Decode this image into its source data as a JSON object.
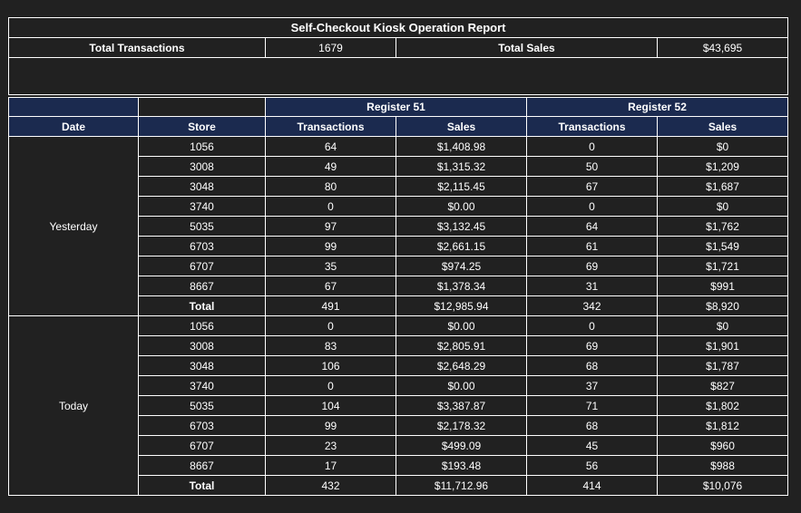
{
  "report": {
    "title": "Self-Checkout Kiosk Operation Report",
    "total_transactions_label": "Total Transactions",
    "total_transactions_value": "1679",
    "total_sales_label": "Total Sales",
    "total_sales_value": "$43,695"
  },
  "registers": [
    "Register 51",
    "Register 52"
  ],
  "columns": {
    "date": "Date",
    "store": "Store",
    "transactions": "Transactions",
    "sales": "Sales"
  },
  "groups": [
    {
      "date": "Yesterday",
      "rows": [
        {
          "store": "1056",
          "r51_tx": "64",
          "r51_sales": "$1,408.98",
          "r52_tx": "0",
          "r52_sales": "$0"
        },
        {
          "store": "3008",
          "r51_tx": "49",
          "r51_sales": "$1,315.32",
          "r52_tx": "50",
          "r52_sales": "$1,209"
        },
        {
          "store": "3048",
          "r51_tx": "80",
          "r51_sales": "$2,115.45",
          "r52_tx": "67",
          "r52_sales": "$1,687"
        },
        {
          "store": "3740",
          "r51_tx": "0",
          "r51_sales": "$0.00",
          "r52_tx": "0",
          "r52_sales": "$0"
        },
        {
          "store": "5035",
          "r51_tx": "97",
          "r51_sales": "$3,132.45",
          "r52_tx": "64",
          "r52_sales": "$1,762"
        },
        {
          "store": "6703",
          "r51_tx": "99",
          "r51_sales": "$2,661.15",
          "r52_tx": "61",
          "r52_sales": "$1,549"
        },
        {
          "store": "6707",
          "r51_tx": "35",
          "r51_sales": "$974.25",
          "r52_tx": "69",
          "r52_sales": "$1,721"
        },
        {
          "store": "8667",
          "r51_tx": "67",
          "r51_sales": "$1,378.34",
          "r52_tx": "31",
          "r52_sales": "$991"
        },
        {
          "store": "Total",
          "r51_tx": "491",
          "r51_sales": "$12,985.94",
          "r52_tx": "342",
          "r52_sales": "$8,920",
          "total": true
        }
      ]
    },
    {
      "date": "Today",
      "rows": [
        {
          "store": "1056",
          "r51_tx": "0",
          "r51_sales": "$0.00",
          "r52_tx": "0",
          "r52_sales": "$0"
        },
        {
          "store": "3008",
          "r51_tx": "83",
          "r51_sales": "$2,805.91",
          "r52_tx": "69",
          "r52_sales": "$1,901"
        },
        {
          "store": "3048",
          "r51_tx": "106",
          "r51_sales": "$2,648.29",
          "r52_tx": "68",
          "r52_sales": "$1,787"
        },
        {
          "store": "3740",
          "r51_tx": "0",
          "r51_sales": "$0.00",
          "r52_tx": "37",
          "r52_sales": "$827"
        },
        {
          "store": "5035",
          "r51_tx": "104",
          "r51_sales": "$3,387.87",
          "r52_tx": "71",
          "r52_sales": "$1,802"
        },
        {
          "store": "6703",
          "r51_tx": "99",
          "r51_sales": "$2,178.32",
          "r52_tx": "68",
          "r52_sales": "$1,812"
        },
        {
          "store": "6707",
          "r51_tx": "23",
          "r51_sales": "$499.09",
          "r52_tx": "45",
          "r52_sales": "$960"
        },
        {
          "store": "8667",
          "r51_tx": "17",
          "r51_sales": "$193.48",
          "r52_tx": "56",
          "r52_sales": "$988"
        },
        {
          "store": "Total",
          "r51_tx": "432",
          "r51_sales": "$11,712.96",
          "r52_tx": "414",
          "r52_sales": "$10,076",
          "total": true
        }
      ]
    }
  ]
}
